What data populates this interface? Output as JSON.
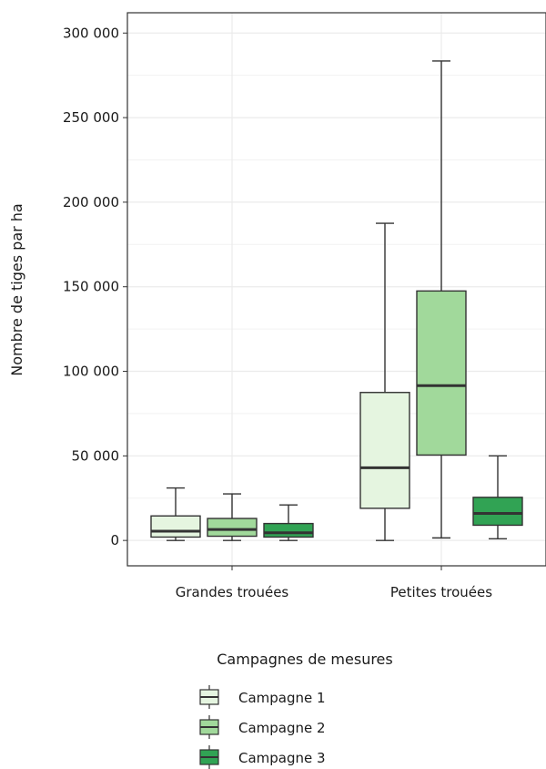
{
  "chart_data": {
    "type": "boxplot",
    "ylabel": "Nombre de tiges par ha",
    "xlabel": "",
    "categories": [
      "Grandes trouées",
      "Petites trouées"
    ],
    "y_ticks": [
      {
        "value": 0,
        "label": "0"
      },
      {
        "value": 50000,
        "label": "50 000"
      },
      {
        "value": 100000,
        "label": "100 000"
      },
      {
        "value": 150000,
        "label": "150 000"
      },
      {
        "value": 200000,
        "label": "200 000"
      },
      {
        "value": 250000,
        "label": "250 000"
      },
      {
        "value": 300000,
        "label": "300 000"
      }
    ],
    "ylim": [
      -15000,
      312000
    ],
    "grid": true,
    "legend": {
      "title": "Campagnes de mesures",
      "placement": "bottom"
    },
    "series": [
      {
        "name": "Campagne 1",
        "color": "#e5f5e0",
        "boxes": [
          {
            "min": 0,
            "q1": 2000,
            "median": 5500,
            "q3": 14500,
            "max": 31000
          },
          {
            "min": 0,
            "q1": 19000,
            "median": 43000,
            "q3": 87500,
            "max": 187500
          }
        ]
      },
      {
        "name": "Campagne 2",
        "color": "#a1d99b",
        "boxes": [
          {
            "min": 0,
            "q1": 2500,
            "median": 6500,
            "q3": 13000,
            "max": 27500
          },
          {
            "min": 1500,
            "q1": 50500,
            "median": 91500,
            "q3": 147500,
            "max": 283500
          }
        ]
      },
      {
        "name": "Campagne 3",
        "color": "#31a354",
        "boxes": [
          {
            "min": 0,
            "q1": 2000,
            "median": 4500,
            "q3": 10000,
            "max": 21000
          },
          {
            "min": 1000,
            "q1": 9000,
            "median": 16000,
            "q3": 25500,
            "max": 50000
          }
        ]
      }
    ]
  }
}
